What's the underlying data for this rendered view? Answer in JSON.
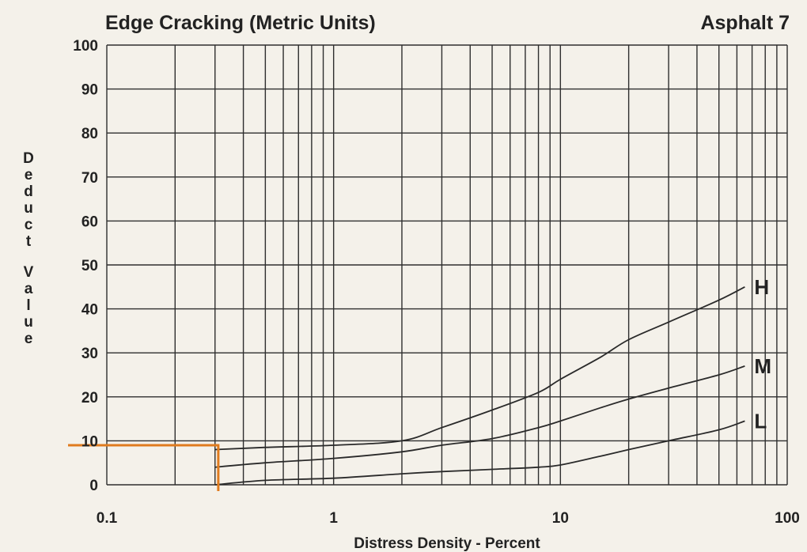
{
  "chart_data": {
    "type": "line",
    "title": "Edge Cracking (Metric Units)",
    "subtitle": "Asphalt 7",
    "xlabel": "Distress Density - Percent",
    "ylabel": "Deduct Value",
    "x_scale": "log",
    "xlim": [
      0.1,
      100
    ],
    "ylim": [
      0,
      100
    ],
    "x_ticks": [
      0.1,
      1,
      10,
      100
    ],
    "x_tick_labels": [
      "0.1",
      "1",
      "10",
      "100"
    ],
    "y_ticks": [
      0,
      10,
      20,
      30,
      40,
      50,
      60,
      70,
      80,
      90,
      100
    ],
    "y_tick_labels": [
      "0",
      "10",
      "20",
      "30",
      "40",
      "50",
      "60",
      "70",
      "80",
      "90",
      "100"
    ],
    "grid": true,
    "series": [
      {
        "name": "H",
        "x": [
          0.3,
          0.5,
          1,
          2,
          3,
          5,
          8,
          10,
          15,
          20,
          30,
          50,
          65
        ],
        "y": [
          8,
          8.5,
          9,
          10,
          13,
          17,
          21,
          24,
          29,
          33,
          37,
          42,
          45
        ]
      },
      {
        "name": "M",
        "x": [
          0.3,
          0.5,
          1,
          2,
          3,
          5,
          8,
          10,
          15,
          20,
          30,
          50,
          65
        ],
        "y": [
          4,
          5,
          6,
          7.5,
          9,
          10.5,
          13,
          14.5,
          17.5,
          19.5,
          22,
          25,
          27
        ]
      },
      {
        "name": "L",
        "x": [
          0.3,
          0.5,
          1,
          2,
          3,
          5,
          8,
          10,
          15,
          20,
          30,
          50,
          65
        ],
        "y": [
          0,
          1,
          1.5,
          2.5,
          3,
          3.5,
          4,
          4.5,
          6.5,
          8,
          10,
          12.5,
          14.5
        ]
      }
    ],
    "reference_line": {
      "x": 0.31,
      "y": 9,
      "color": "#e07b1e"
    }
  }
}
